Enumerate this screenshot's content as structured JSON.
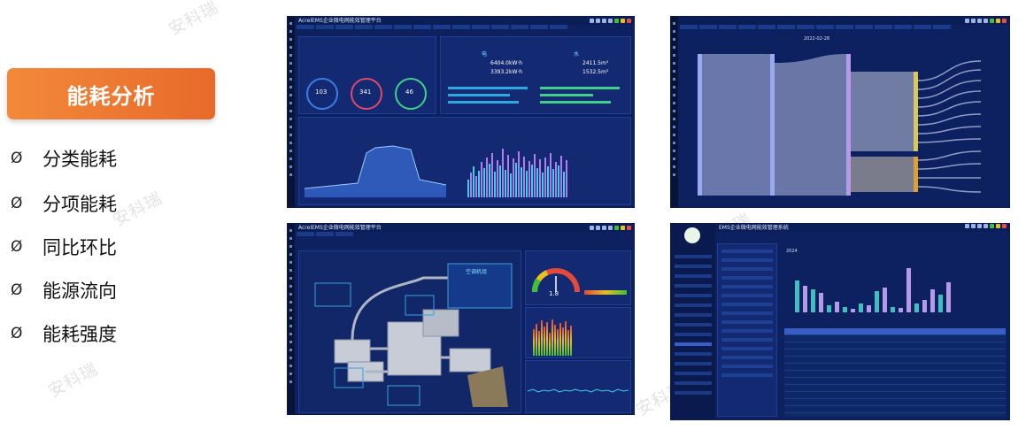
{
  "watermark": "安科瑞",
  "section_title": "能耗分析",
  "bullet_glyph": "Ø",
  "features": [
    "分类能耗",
    "分项能耗",
    "同比环比",
    "能源流向",
    "能耗强度"
  ],
  "screenshots": {
    "top_left": {
      "app_title": "AcrelEMS企业微电网能效管理平台",
      "values": {
        "electric": "6404.0kW·h",
        "electric2": "3393.2kW·h",
        "water": "2411.5m³",
        "water2": "1532.5m³"
      },
      "rings": [
        "103",
        "341",
        "46"
      ],
      "water_label": "水",
      "elec_label": "电"
    },
    "top_right": {
      "app_title": "",
      "date": "2022-02-28"
    },
    "bottom_left": {
      "app_title": "AcrelEMS企业微电网能效管理平台",
      "gauge_value": "1.8",
      "box_title": "空调机组"
    },
    "bottom_right": {
      "app_title": "EMS企业微电网能效管理系统",
      "year": "2024"
    }
  },
  "colors": {
    "accent_orange": "#e8712f",
    "panel_bg": "#0d2161"
  }
}
